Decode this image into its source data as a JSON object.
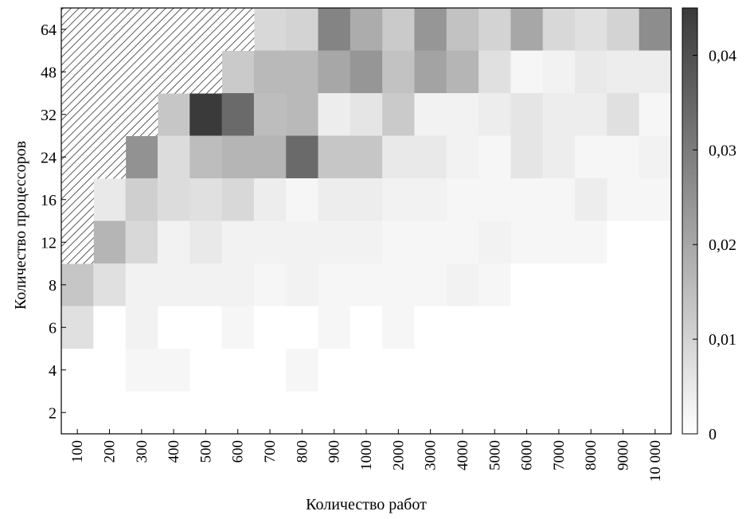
{
  "chart_data": {
    "type": "heatmap",
    "xlabel": "Количество работ",
    "ylabel": "Количество процессоров",
    "x_categories": [
      "100",
      "200",
      "300",
      "400",
      "500",
      "600",
      "700",
      "800",
      "900",
      "1000",
      "2000",
      "3000",
      "4000",
      "5000",
      "6000",
      "7000",
      "8000",
      "9000",
      "10 000"
    ],
    "y_categories": [
      "2",
      "4",
      "6",
      "8",
      "12",
      "16",
      "24",
      "32",
      "48",
      "64"
    ],
    "colorbar": {
      "min": 0,
      "max": 0.045,
      "ticks": [
        0,
        0.01,
        0.02,
        0.03,
        0.04
      ],
      "tick_labels": [
        "0",
        "0,01",
        "0,02",
        "0,03",
        "0,04"
      ]
    },
    "color_scale": {
      "low": "#ffffff",
      "high": "#3a3a3a"
    },
    "missing_pattern": "hatched",
    "values": {
      "64": [
        null,
        null,
        null,
        null,
        null,
        null,
        0.009,
        0.01,
        0.028,
        0.019,
        0.012,
        0.024,
        0.014,
        0.01,
        0.02,
        0.009,
        0.007,
        0.01,
        0.026
      ],
      "48": [
        null,
        null,
        null,
        null,
        null,
        0.012,
        0.016,
        0.016,
        0.02,
        0.024,
        0.014,
        0.021,
        0.017,
        0.007,
        0.002,
        0.003,
        0.005,
        0.004,
        0.004
      ],
      "32": [
        null,
        null,
        null,
        0.013,
        0.045,
        0.034,
        0.015,
        0.016,
        0.004,
        0.006,
        0.012,
        0.003,
        0.003,
        0.004,
        0.006,
        0.004,
        0.004,
        0.007,
        0.002
      ],
      "24": [
        null,
        null,
        0.025,
        0.008,
        0.015,
        0.017,
        0.017,
        0.034,
        0.013,
        0.013,
        0.005,
        0.005,
        0.003,
        0.002,
        0.006,
        0.004,
        0.002,
        0.002,
        0.003
      ],
      "16": [
        null,
        0.005,
        0.011,
        0.008,
        0.007,
        0.009,
        0.004,
        0.002,
        0.004,
        0.004,
        0.003,
        0.003,
        0.002,
        0.002,
        0.002,
        0.002,
        0.004,
        0.002,
        0.002
      ],
      "12": [
        null,
        0.017,
        0.009,
        0.003,
        0.005,
        0.003,
        0.003,
        0.003,
        0.003,
        0.003,
        0.002,
        0.002,
        0.002,
        0.003,
        0.002,
        0.002,
        0.002,
        0,
        0
      ],
      "8": [
        0.013,
        0.007,
        0.003,
        0.003,
        0.003,
        0.003,
        0.002,
        0.003,
        0.002,
        0.002,
        0.002,
        0.002,
        0.003,
        0.002,
        0,
        0,
        0,
        0,
        0
      ],
      "6": [
        0.007,
        0,
        0.003,
        0,
        0,
        0.002,
        0,
        0,
        0.002,
        0,
        0.002,
        0,
        0,
        0,
        0,
        0,
        0,
        0,
        0
      ],
      "4": [
        0,
        0,
        0.002,
        0.002,
        0,
        0,
        0,
        0.002,
        0,
        0,
        0,
        0,
        0,
        0,
        0,
        0,
        0,
        0,
        0
      ],
      "2": [
        0,
        0,
        0,
        0,
        0,
        0,
        0,
        0,
        0,
        0,
        0,
        0,
        0,
        0,
        0,
        0,
        0,
        0,
        0
      ]
    }
  }
}
